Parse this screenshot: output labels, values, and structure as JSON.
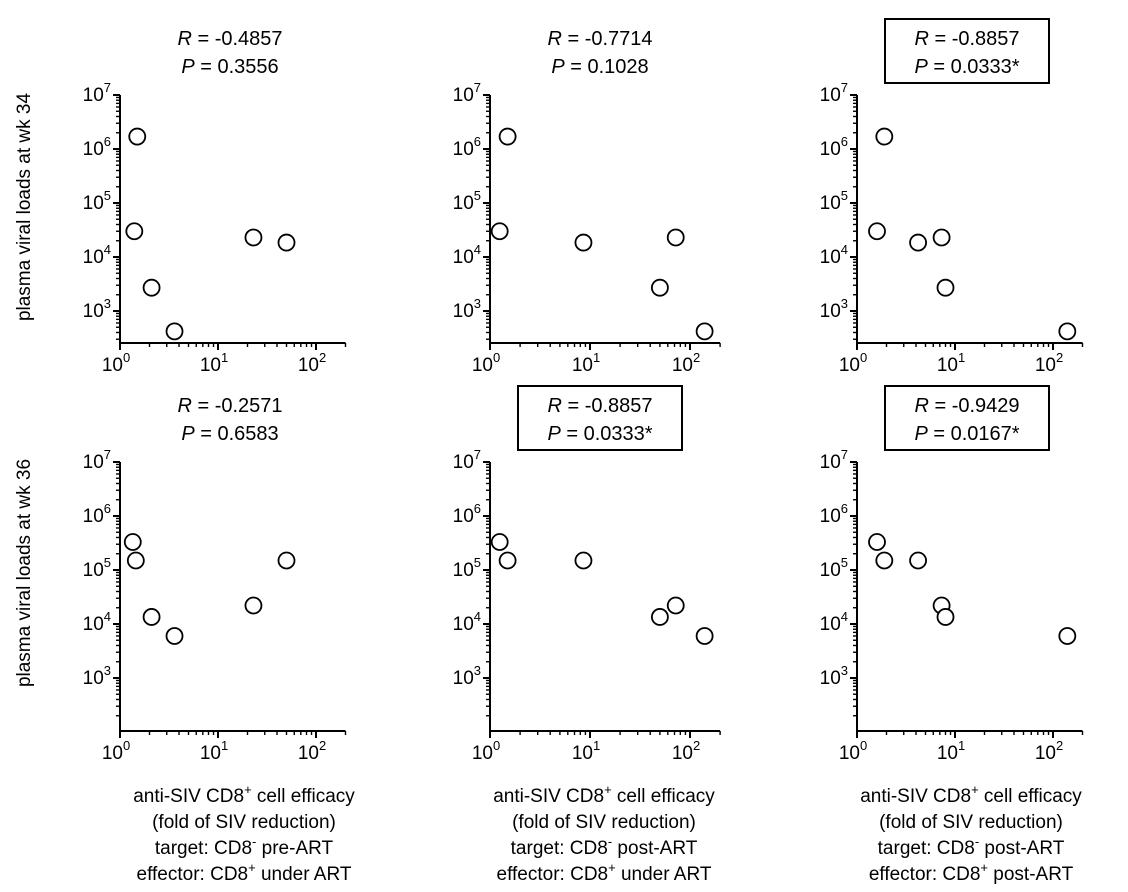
{
  "row_labels": [
    "plasma viral loads at wk 34",
    "plasma viral loads at wk 36"
  ],
  "x_axis_description": [
    {
      "line1_pre": "anti-SIV CD8",
      "line1_sup": "+",
      "line1_post": " cell efficacy",
      "line2": "(fold of SIV reduction)",
      "line3_pre": "target: CD8",
      "line3_sup": "-",
      "line3_post": " pre-ART",
      "line4_pre": "effector: CD8",
      "line4_sup": "+",
      "line4_post": " under ART"
    },
    {
      "line1_pre": "anti-SIV CD8",
      "line1_sup": "+",
      "line1_post": " cell efficacy",
      "line2": "(fold of SIV reduction)",
      "line3_pre": "target: CD8",
      "line3_sup": "-",
      "line3_post": " post-ART",
      "line4_pre": "effector: CD8",
      "line4_sup": "+",
      "line4_post": " under ART"
    },
    {
      "line1_pre": "anti-SIV CD8",
      "line1_sup": "+",
      "line1_post": " cell efficacy",
      "line2": "(fold of SIV reduction)",
      "line3_pre": "target: CD8",
      "line3_sup": "-",
      "line3_post": " post-ART",
      "line4_pre": "effector: CD8",
      "line4_sup": "+",
      "line4_post": " post-ART"
    }
  ],
  "colors": {
    "axis": "#000000",
    "marker_stroke": "#000000",
    "marker_fill": "#ffffff"
  },
  "chart_data": [
    {
      "type": "scatter",
      "row": 0,
      "col": 0,
      "r_label": "R",
      "r_value": " = -0.4857",
      "p_label": "P",
      "p_value": " = 0.3556",
      "significant": false,
      "x_scale": "log",
      "y_scale": "log",
      "xlim": [
        1,
        200
      ],
      "ylim": [
        400,
        10000000
      ],
      "x_ticks": [
        1,
        10,
        100
      ],
      "y_ticks": [
        1000,
        10000,
        100000,
        1000000,
        10000000
      ],
      "points": [
        [
          1.5,
          1700000
        ],
        [
          1.4,
          30000
        ],
        [
          2.1,
          2700
        ],
        [
          3.6,
          420
        ],
        [
          23,
          23000
        ],
        [
          50,
          18500
        ]
      ]
    },
    {
      "type": "scatter",
      "row": 0,
      "col": 1,
      "r_label": "R",
      "r_value": " = -0.7714",
      "p_label": "P",
      "p_value": " = 0.1028",
      "significant": false,
      "x_scale": "log",
      "y_scale": "log",
      "xlim": [
        1,
        200
      ],
      "ylim": [
        400,
        10000000
      ],
      "x_ticks": [
        1,
        10,
        100
      ],
      "y_ticks": [
        1000,
        10000,
        100000,
        1000000,
        10000000
      ],
      "points": [
        [
          1.5,
          1700000
        ],
        [
          1.25,
          30000
        ],
        [
          8.6,
          18500
        ],
        [
          72,
          23000
        ],
        [
          50,
          2700
        ],
        [
          140,
          420
        ]
      ]
    },
    {
      "type": "scatter",
      "row": 0,
      "col": 2,
      "r_label": "R",
      "r_value": " = -0.8857",
      "p_label": "P",
      "p_value": " = 0.0333*",
      "significant": true,
      "x_scale": "log",
      "y_scale": "log",
      "xlim": [
        1,
        200
      ],
      "ylim": [
        400,
        10000000
      ],
      "x_ticks": [
        1,
        10,
        100
      ],
      "y_ticks": [
        1000,
        10000,
        100000,
        1000000,
        10000000
      ],
      "points": [
        [
          1.9,
          1700000
        ],
        [
          1.6,
          30000
        ],
        [
          4.2,
          18500
        ],
        [
          7.3,
          23000
        ],
        [
          8.0,
          2700
        ],
        [
          140,
          420
        ]
      ]
    },
    {
      "type": "scatter",
      "row": 1,
      "col": 0,
      "r_label": "R",
      "r_value": " = -0.2571",
      "p_label": "P",
      "p_value": " = 0.6583",
      "significant": false,
      "x_scale": "log",
      "y_scale": "log",
      "xlim": [
        1,
        200
      ],
      "ylim": [
        300,
        10000000
      ],
      "x_ticks": [
        1,
        10,
        100
      ],
      "y_ticks": [
        1000,
        10000,
        100000,
        1000000,
        10000000
      ],
      "points": [
        [
          1.35,
          330000
        ],
        [
          1.45,
          150000
        ],
        [
          2.1,
          13500
        ],
        [
          3.6,
          6000
        ],
        [
          23,
          22000
        ],
        [
          50,
          150000
        ]
      ]
    },
    {
      "type": "scatter",
      "row": 1,
      "col": 1,
      "r_label": "R",
      "r_value": " = -0.8857",
      "p_label": "P",
      "p_value": " = 0.0333*",
      "significant": true,
      "x_scale": "log",
      "y_scale": "log",
      "xlim": [
        1,
        200
      ],
      "ylim": [
        300,
        10000000
      ],
      "x_ticks": [
        1,
        10,
        100
      ],
      "y_ticks": [
        1000,
        10000,
        100000,
        1000000,
        10000000
      ],
      "points": [
        [
          1.25,
          330000
        ],
        [
          1.5,
          150000
        ],
        [
          8.6,
          150000
        ],
        [
          50,
          13500
        ],
        [
          72,
          22000
        ],
        [
          140,
          6000
        ]
      ]
    },
    {
      "type": "scatter",
      "row": 1,
      "col": 2,
      "r_label": "R",
      "r_value": " = -0.9429",
      "p_label": "P",
      "p_value": " = 0.0167*",
      "significant": true,
      "x_scale": "log",
      "y_scale": "log",
      "xlim": [
        1,
        200
      ],
      "ylim": [
        300,
        10000000
      ],
      "x_ticks": [
        1,
        10,
        100
      ],
      "y_ticks": [
        1000,
        10000,
        100000,
        1000000,
        10000000
      ],
      "points": [
        [
          1.6,
          330000
        ],
        [
          1.9,
          150000
        ],
        [
          4.2,
          150000
        ],
        [
          7.3,
          22000
        ],
        [
          8.0,
          13500
        ],
        [
          140,
          6000
        ]
      ]
    }
  ]
}
